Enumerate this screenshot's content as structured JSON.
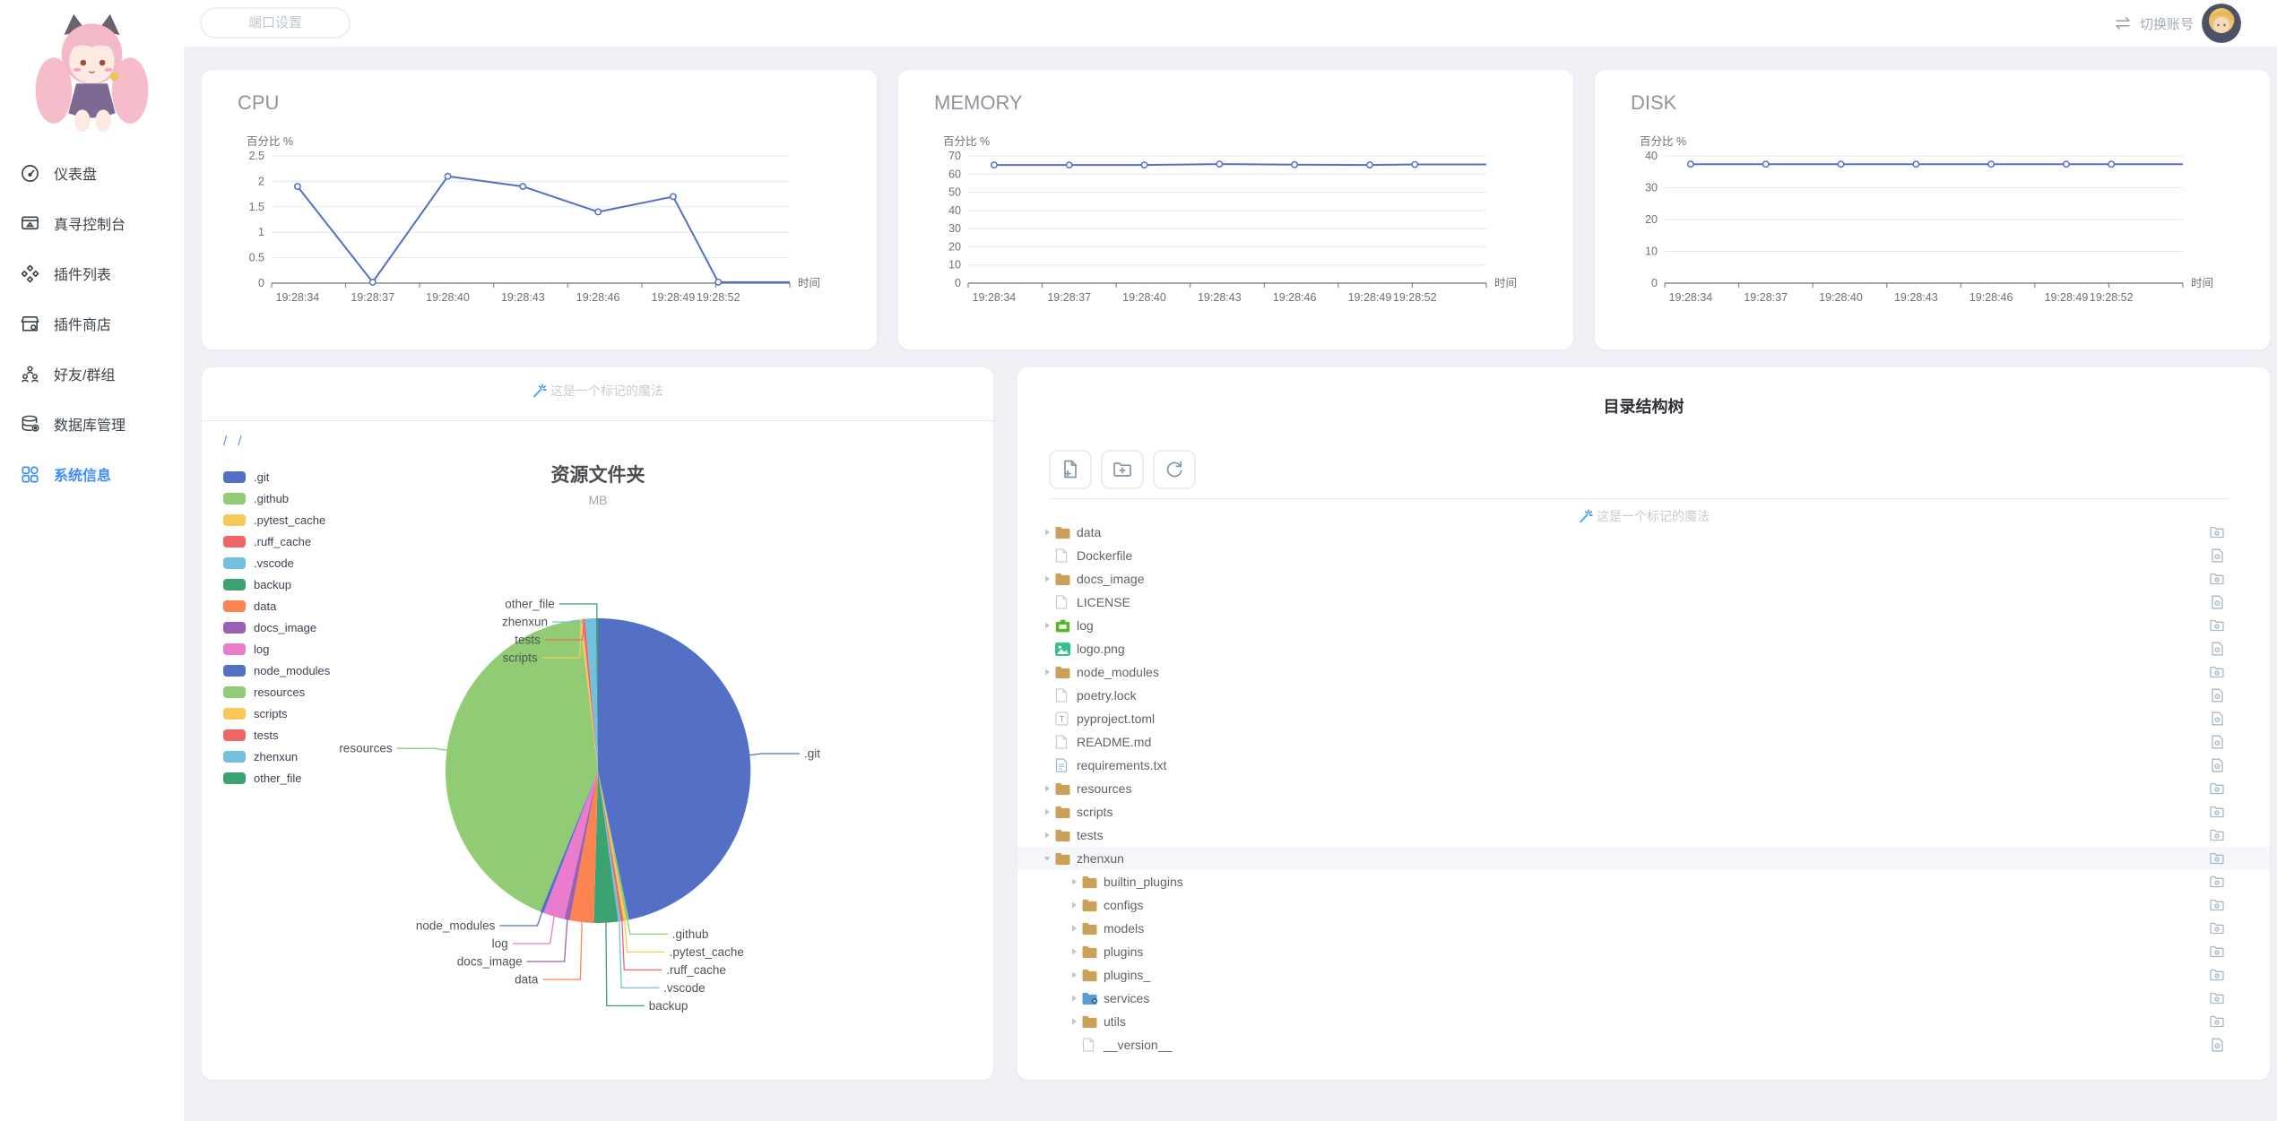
{
  "topbar": {
    "port_placeholder": "端口设置",
    "switch_account": "切换账号"
  },
  "sidebar": {
    "items": [
      {
        "label": "仪表盘",
        "icon": "gauge-icon",
        "active": false
      },
      {
        "label": "真寻控制台",
        "icon": "console-icon",
        "active": false
      },
      {
        "label": "插件列表",
        "icon": "plugin-list-icon",
        "active": false
      },
      {
        "label": "插件商店",
        "icon": "plugin-store-icon",
        "active": false
      },
      {
        "label": "好友/群组",
        "icon": "friends-icon",
        "active": false
      },
      {
        "label": "数据库管理",
        "icon": "database-icon",
        "active": false
      },
      {
        "label": "系统信息",
        "icon": "system-info-icon",
        "active": true
      }
    ]
  },
  "chart_data": [
    {
      "type": "line",
      "title": "CPU",
      "y_axis_name": "百分比 %",
      "x_axis_name": "时间",
      "categories": [
        "19:28:34",
        "19:28:37",
        "19:28:40",
        "19:28:43",
        "19:28:46",
        "19:28:49",
        "19:28:52"
      ],
      "values": [
        1.9,
        0.02,
        2.1,
        1.9,
        1.4,
        1.7,
        0.02
      ],
      "y_ticks": [
        0,
        0.5,
        1,
        1.5,
        2,
        2.5
      ],
      "ylim": [
        0,
        2.5
      ],
      "grid": true,
      "line_color": "#5470c6"
    },
    {
      "type": "line",
      "title": "MEMORY",
      "y_axis_name": "百分比 %",
      "x_axis_name": "时间",
      "categories": [
        "19:28:34",
        "19:28:37",
        "19:28:40",
        "19:28:43",
        "19:28:46",
        "19:28:49",
        "19:28:52"
      ],
      "values": [
        65,
        65,
        65,
        65.5,
        65.2,
        65,
        65.3
      ],
      "y_ticks": [
        0,
        10,
        20,
        30,
        40,
        50,
        60,
        70
      ],
      "ylim": [
        0,
        70
      ],
      "grid": true,
      "line_color": "#5470c6"
    },
    {
      "type": "line",
      "title": "DISK",
      "y_axis_name": "百分比 %",
      "x_axis_name": "时间",
      "categories": [
        "19:28:34",
        "19:28:37",
        "19:28:40",
        "19:28:43",
        "19:28:46",
        "19:28:49",
        "19:28:52"
      ],
      "values": [
        37.4,
        37.4,
        37.4,
        37.4,
        37.4,
        37.4,
        37.4
      ],
      "y_ticks": [
        0,
        10,
        20,
        30,
        40
      ],
      "ylim": [
        0,
        40
      ],
      "grid": true,
      "line_color": "#5470c6"
    },
    {
      "type": "pie",
      "title": "资源文件夹",
      "subtitle": "MB",
      "unit": "MB",
      "legend_position": "left",
      "palette": [
        "#5470c6",
        "#91cc75",
        "#fac858",
        "#ee6666",
        "#73c0de",
        "#3ba272",
        "#fc8452",
        "#9a60b4",
        "#ea7ccc"
      ],
      "slices": [
        {
          "name": ".git",
          "value": 330
        },
        {
          "name": ".github",
          "value": 2
        },
        {
          "name": ".pytest_cache",
          "value": 2
        },
        {
          "name": ".ruff_cache",
          "value": 2
        },
        {
          "name": ".vscode",
          "value": 2
        },
        {
          "name": "backup",
          "value": 18
        },
        {
          "name": "data",
          "value": 18
        },
        {
          "name": "docs_image",
          "value": 4
        },
        {
          "name": "log",
          "value": 16
        },
        {
          "name": "node_modules",
          "value": 2.5
        },
        {
          "name": "resources",
          "value": 296
        },
        {
          "name": "scripts",
          "value": 2
        },
        {
          "name": "tests",
          "value": 2
        },
        {
          "name": "zhenxun",
          "value": 8
        },
        {
          "name": "other_file",
          "value": 1.5
        }
      ]
    }
  ],
  "pie_card": {
    "marker_text": "这是一个标记的魔法",
    "breadcrumb": "/ /"
  },
  "tree_card": {
    "title": "目录结构树",
    "marker_text": "这是一个标记的魔法",
    "toolbar": [
      {
        "name": "new-file",
        "icon": "new-file-icon"
      },
      {
        "name": "new-folder",
        "icon": "new-folder-icon"
      },
      {
        "name": "refresh",
        "icon": "refresh-icon"
      }
    ],
    "rows": [
      {
        "name": "data",
        "type": "folder",
        "level": 0
      },
      {
        "name": "Dockerfile",
        "type": "file",
        "level": 0
      },
      {
        "name": "docs_image",
        "type": "folder",
        "level": 0
      },
      {
        "name": "LICENSE",
        "type": "file",
        "level": 0
      },
      {
        "name": "log",
        "type": "folder-log",
        "level": 0
      },
      {
        "name": "logo.png",
        "type": "image",
        "level": 0
      },
      {
        "name": "node_modules",
        "type": "folder",
        "level": 0
      },
      {
        "name": "poetry.lock",
        "type": "file",
        "level": 0
      },
      {
        "name": "pyproject.toml",
        "type": "toml",
        "level": 0
      },
      {
        "name": "README.md",
        "type": "file",
        "level": 0
      },
      {
        "name": "requirements.txt",
        "type": "text",
        "level": 0
      },
      {
        "name": "resources",
        "type": "folder",
        "level": 0
      },
      {
        "name": "scripts",
        "type": "folder",
        "level": 0
      },
      {
        "name": "tests",
        "type": "folder",
        "level": 0
      },
      {
        "name": "zhenxun",
        "type": "folder",
        "level": 0,
        "expanded": true,
        "selected": true
      },
      {
        "name": "builtin_plugins",
        "type": "folder",
        "level": 1
      },
      {
        "name": "configs",
        "type": "folder",
        "level": 1
      },
      {
        "name": "models",
        "type": "folder",
        "level": 1
      },
      {
        "name": "plugins",
        "type": "folder",
        "level": 1
      },
      {
        "name": "plugins_",
        "type": "folder",
        "level": 1
      },
      {
        "name": "services",
        "type": "folder-service",
        "level": 1
      },
      {
        "name": "utils",
        "type": "folder",
        "level": 1
      },
      {
        "name": "__version__",
        "type": "file",
        "level": 1
      }
    ]
  },
  "colors": {
    "accent": "#3f8cff",
    "line": "#5470c6",
    "folder": "#C9A158",
    "grid_line": "#E3E7F0",
    "axis": "#6E7079"
  }
}
